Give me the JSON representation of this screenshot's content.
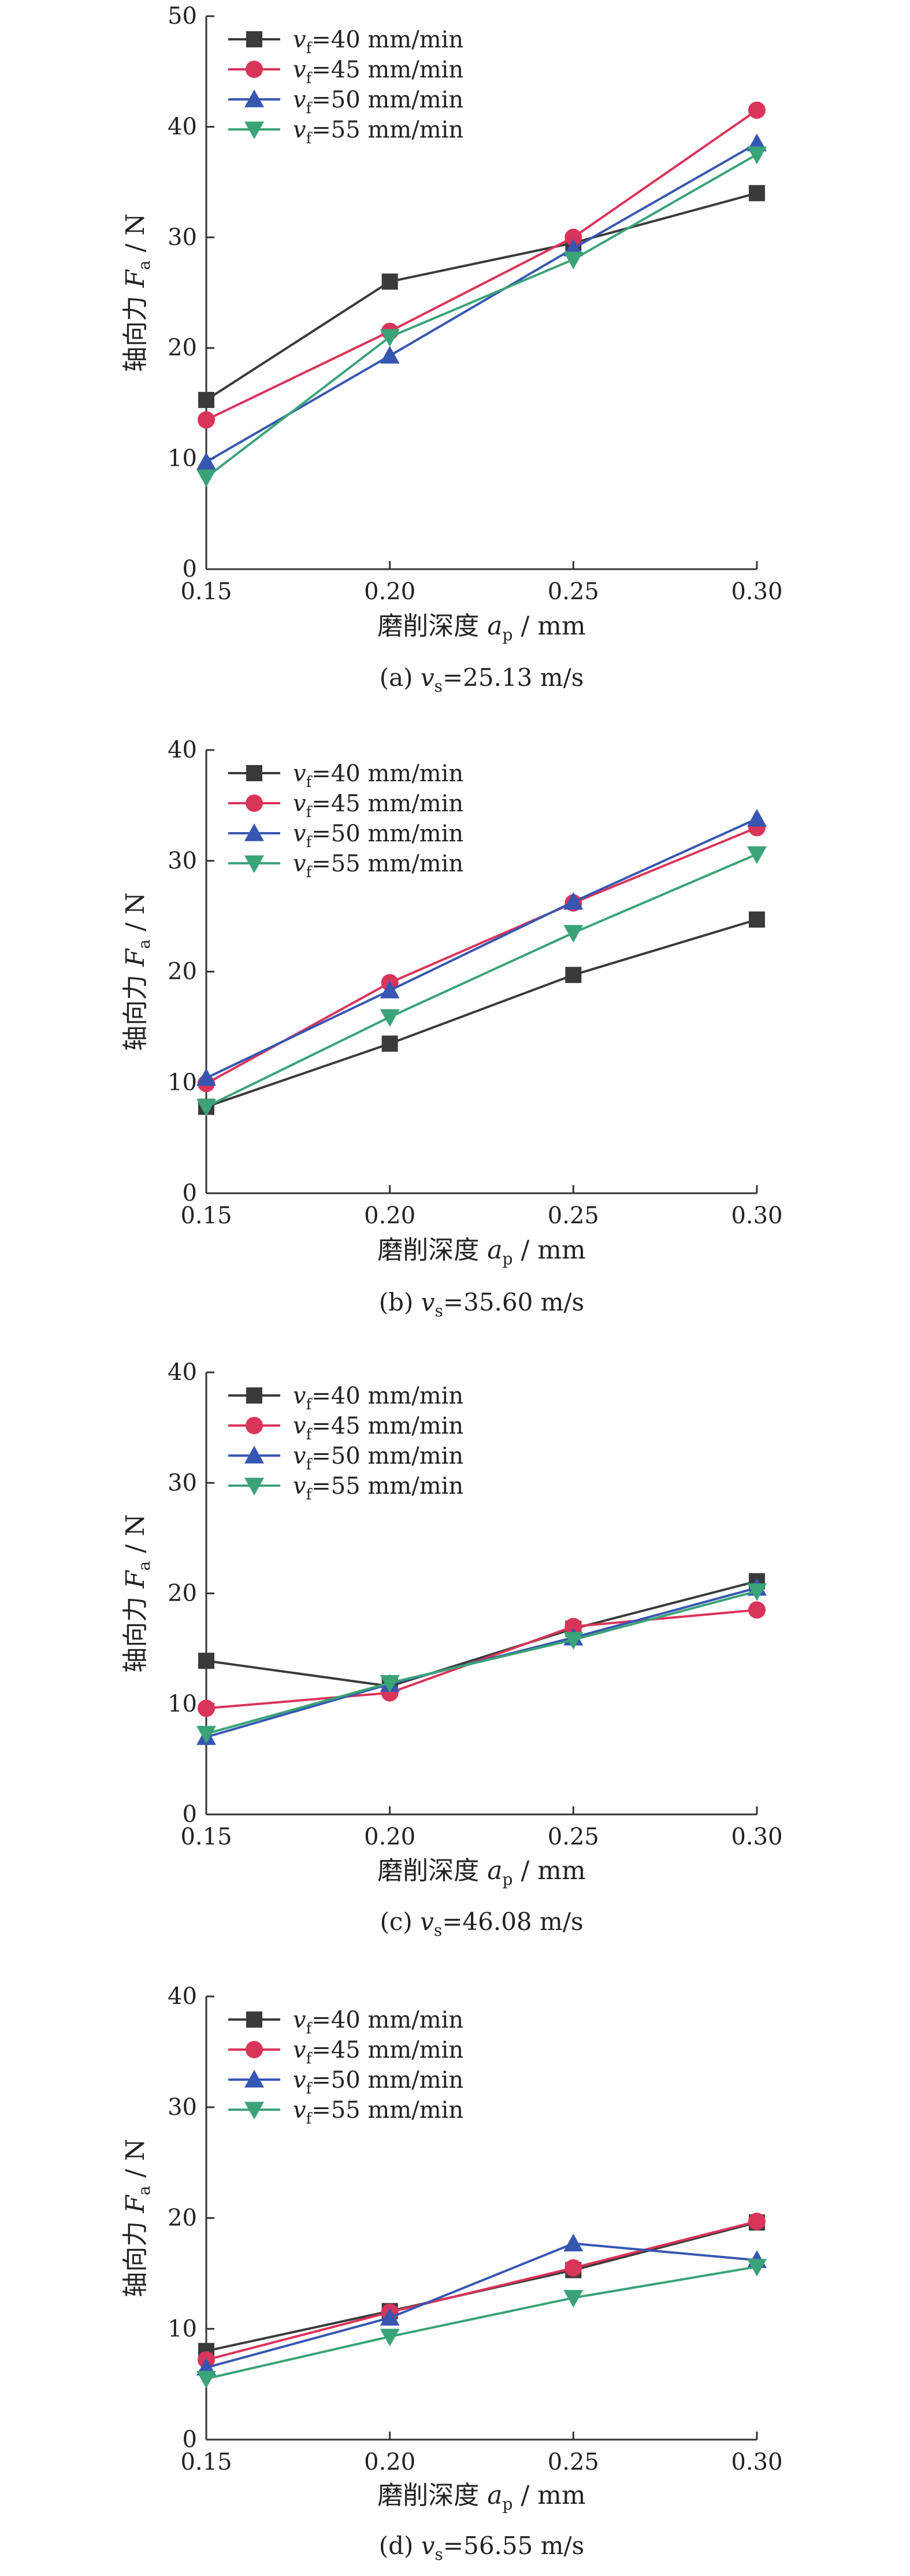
{
  "colors": {
    "vf40": "#3a3a3a",
    "vf45": "#d9345a",
    "vf50": "#3656b0",
    "vf55": "#3aa377"
  },
  "chart_data": [
    {
      "type": "line",
      "caption": {
        "prefix": "(a) ",
        "var": "v",
        "sub": "s",
        "value": "=25.13 m/s"
      },
      "xlabel": {
        "text": "磨削深度 ",
        "var": "a",
        "sub": "p",
        "unit": " / mm"
      },
      "ylabel": {
        "text": "轴向力 ",
        "var": "F",
        "sub": "a",
        "unit": " / N"
      },
      "x": [
        0.15,
        0.2,
        0.25,
        0.3
      ],
      "x_tick_labels": [
        "0.15",
        "0.20",
        "0.25",
        "0.30"
      ],
      "ylim": [
        0,
        50
      ],
      "yticks": [
        0,
        10,
        20,
        30,
        40,
        50
      ],
      "legend_position": "top-left",
      "grid": false,
      "series": [
        {
          "name": {
            "var": "v",
            "sub": "f",
            "rest": "=40 mm/min"
          },
          "color_key": "vf40",
          "marker": "square",
          "values": [
            15.3,
            26.0,
            29.5,
            34.0
          ]
        },
        {
          "name": {
            "var": "v",
            "sub": "f",
            "rest": "=45 mm/min"
          },
          "color_key": "vf45",
          "marker": "circle",
          "values": [
            13.5,
            21.5,
            30.0,
            41.5
          ]
        },
        {
          "name": {
            "var": "v",
            "sub": "f",
            "rest": "=50 mm/min"
          },
          "color_key": "vf50",
          "marker": "triangle-up",
          "values": [
            9.7,
            19.3,
            29.0,
            38.5
          ]
        },
        {
          "name": {
            "var": "v",
            "sub": "f",
            "rest": "=55 mm/min"
          },
          "color_key": "vf55",
          "marker": "triangle-down",
          "values": [
            8.3,
            21.0,
            28.0,
            37.5
          ]
        }
      ]
    },
    {
      "type": "line",
      "caption": {
        "prefix": "(b) ",
        "var": "v",
        "sub": "s",
        "value": "=35.60 m/s"
      },
      "xlabel": {
        "text": "磨削深度 ",
        "var": "a",
        "sub": "p",
        "unit": " / mm"
      },
      "ylabel": {
        "text": "轴向力 ",
        "var": "F",
        "sub": "a",
        "unit": " / N"
      },
      "x": [
        0.15,
        0.2,
        0.25,
        0.3
      ],
      "x_tick_labels": [
        "0.15",
        "0.20",
        "0.25",
        "0.30"
      ],
      "ylim": [
        0,
        40
      ],
      "yticks": [
        0,
        10,
        20,
        30,
        40
      ],
      "legend_position": "top-left",
      "grid": false,
      "series": [
        {
          "name": {
            "var": "v",
            "sub": "f",
            "rest": "=40 mm/min"
          },
          "color_key": "vf40",
          "marker": "square",
          "values": [
            7.8,
            13.5,
            19.7,
            24.7
          ]
        },
        {
          "name": {
            "var": "v",
            "sub": "f",
            "rest": "=45 mm/min"
          },
          "color_key": "vf45",
          "marker": "circle",
          "values": [
            9.9,
            19.0,
            26.2,
            33.0
          ]
        },
        {
          "name": {
            "var": "v",
            "sub": "f",
            "rest": "=50 mm/min"
          },
          "color_key": "vf50",
          "marker": "triangle-up",
          "values": [
            10.4,
            18.3,
            26.3,
            33.8
          ]
        },
        {
          "name": {
            "var": "v",
            "sub": "f",
            "rest": "=55 mm/min"
          },
          "color_key": "vf55",
          "marker": "triangle-down",
          "values": [
            7.8,
            15.9,
            23.5,
            30.6
          ]
        }
      ]
    },
    {
      "type": "line",
      "caption": {
        "prefix": "(c) ",
        "var": "v",
        "sub": "s",
        "value": "=46.08 m/s"
      },
      "xlabel": {
        "text": "磨削深度 ",
        "var": "a",
        "sub": "p",
        "unit": " / mm"
      },
      "ylabel": {
        "text": "轴向力 ",
        "var": "F",
        "sub": "a",
        "unit": " / N"
      },
      "x": [
        0.15,
        0.2,
        0.25,
        0.3
      ],
      "x_tick_labels": [
        "0.15",
        "0.20",
        "0.25",
        "0.30"
      ],
      "ylim": [
        0,
        40
      ],
      "yticks": [
        0,
        10,
        20,
        30,
        40
      ],
      "legend_position": "top-left",
      "grid": false,
      "series": [
        {
          "name": {
            "var": "v",
            "sub": "f",
            "rest": "=40 mm/min"
          },
          "color_key": "vf40",
          "marker": "square",
          "values": [
            13.9,
            11.6,
            16.8,
            21.1
          ]
        },
        {
          "name": {
            "var": "v",
            "sub": "f",
            "rest": "=45 mm/min"
          },
          "color_key": "vf45",
          "marker": "circle",
          "values": [
            9.6,
            11.0,
            17.0,
            18.5
          ]
        },
        {
          "name": {
            "var": "v",
            "sub": "f",
            "rest": "=50 mm/min"
          },
          "color_key": "vf50",
          "marker": "triangle-up",
          "values": [
            7.0,
            11.8,
            16.0,
            20.5
          ]
        },
        {
          "name": {
            "var": "v",
            "sub": "f",
            "rest": "=55 mm/min"
          },
          "color_key": "vf55",
          "marker": "triangle-down",
          "values": [
            7.3,
            11.9,
            15.8,
            20.2
          ]
        }
      ]
    },
    {
      "type": "line",
      "caption": {
        "prefix": "(d) ",
        "var": "v",
        "sub": "s",
        "value": "=56.55 m/s"
      },
      "xlabel": {
        "text": "磨削深度 ",
        "var": "a",
        "sub": "p",
        "unit": " / mm"
      },
      "ylabel": {
        "text": "轴向力 ",
        "var": "F",
        "sub": "a",
        "unit": " / N"
      },
      "x": [
        0.15,
        0.2,
        0.25,
        0.3
      ],
      "x_tick_labels": [
        "0.15",
        "0.20",
        "0.25",
        "0.30"
      ],
      "ylim": [
        0,
        40
      ],
      "yticks": [
        0,
        10,
        20,
        30,
        40
      ],
      "legend_position": "top-left",
      "grid": false,
      "series": [
        {
          "name": {
            "var": "v",
            "sub": "f",
            "rest": "=40 mm/min"
          },
          "color_key": "vf40",
          "marker": "square",
          "values": [
            8.0,
            11.6,
            15.3,
            19.6
          ]
        },
        {
          "name": {
            "var": "v",
            "sub": "f",
            "rest": "=45 mm/min"
          },
          "color_key": "vf45",
          "marker": "circle",
          "values": [
            7.2,
            11.5,
            15.5,
            19.7
          ]
        },
        {
          "name": {
            "var": "v",
            "sub": "f",
            "rest": "=50 mm/min"
          },
          "color_key": "vf50",
          "marker": "triangle-up",
          "values": [
            6.5,
            11.0,
            17.7,
            16.2
          ]
        },
        {
          "name": {
            "var": "v",
            "sub": "f",
            "rest": "=55 mm/min"
          },
          "color_key": "vf55",
          "marker": "triangle-down",
          "values": [
            5.5,
            9.3,
            12.8,
            15.6
          ]
        }
      ]
    }
  ]
}
